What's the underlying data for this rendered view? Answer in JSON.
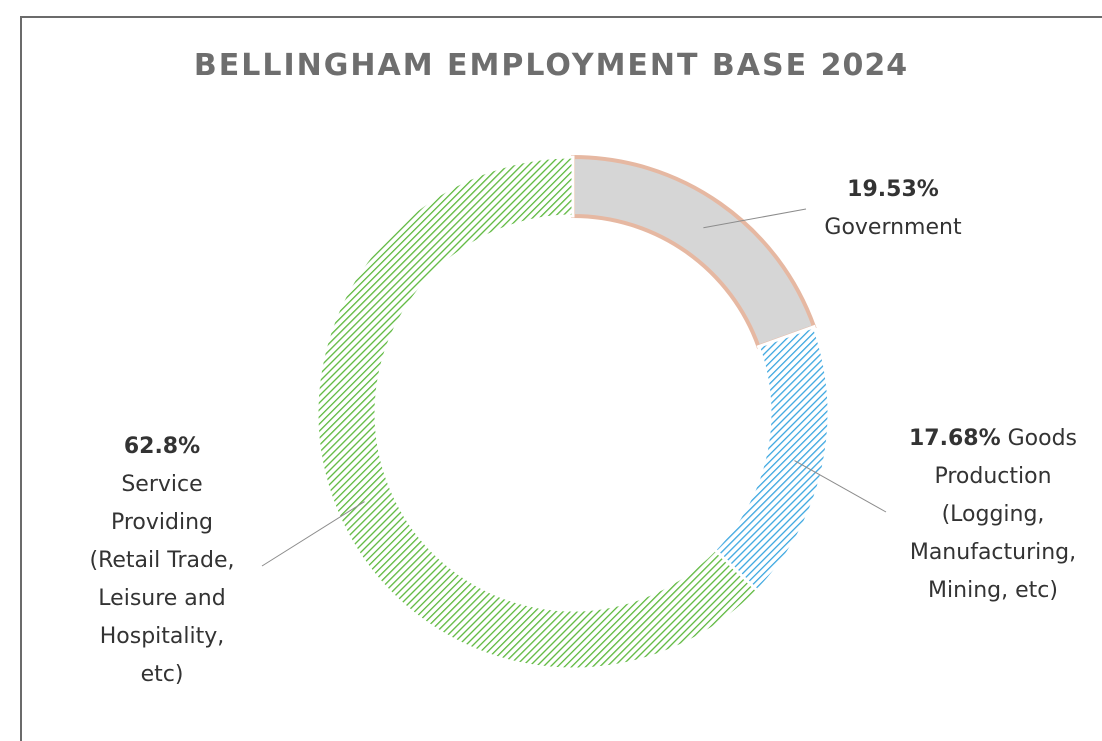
{
  "chart_data": {
    "type": "pie",
    "donut": true,
    "title": "BELLINGHAM EMPLOYMENT BASE",
    "title_year": "2024",
    "slices": [
      {
        "name": "Government",
        "percent_label": "19.53%",
        "value": 19.53,
        "color": "#d9d9d9",
        "border": "#e6b8a2",
        "label_lines": [
          "Government"
        ]
      },
      {
        "name": "Goods Production",
        "percent_label": "17.68%",
        "value": 17.68,
        "color": "#4fb3e8",
        "border": "#ffffff",
        "label_lines": [
          "Goods",
          "Production",
          "(Logging,",
          "Manufacturing,",
          "Mining, etc)"
        ]
      },
      {
        "name": "Service Providing",
        "percent_label": "62.8%",
        "value": 62.8,
        "color": "#6cc04a",
        "border": "#ffffff",
        "label_lines": [
          "Service",
          "Providing",
          "(Retail Trade,",
          "Leisure and",
          "Hospitality,",
          "etc)"
        ]
      }
    ],
    "legend": "none",
    "fill_pattern": "diagonal-hatch"
  }
}
